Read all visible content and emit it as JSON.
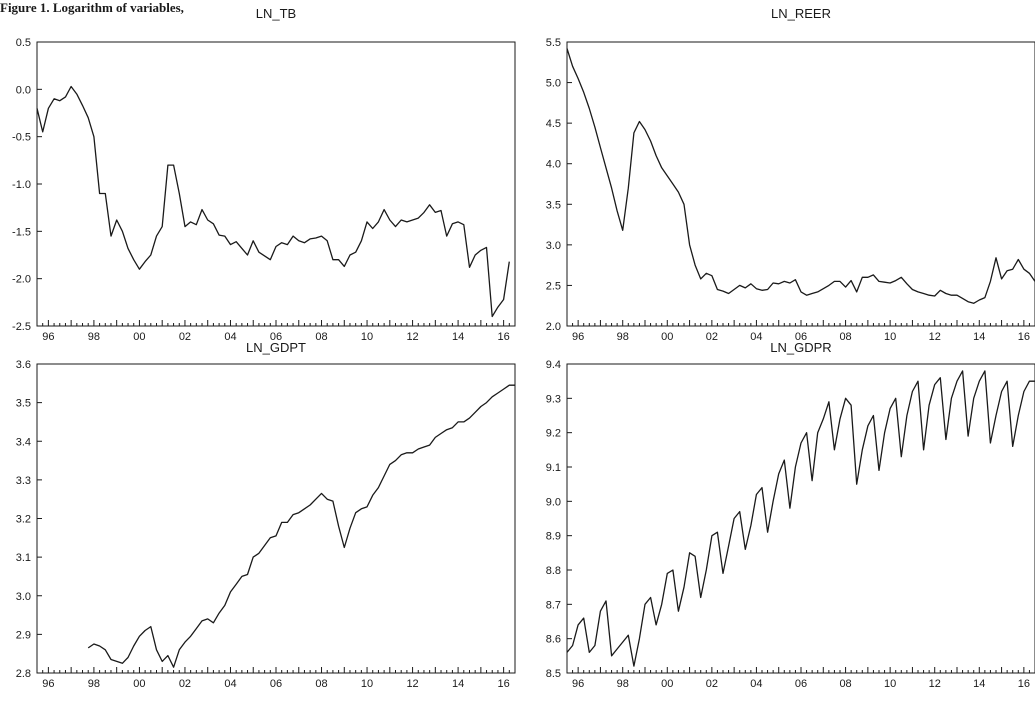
{
  "figure_caption": "Figure 1. Logarithm of variables,",
  "chart_data": [
    {
      "type": "line",
      "title": "LN_TB",
      "ylim": [
        -2.5,
        0.5
      ],
      "yticks": [
        0.5,
        0.0,
        -0.5,
        -1.0,
        -1.5,
        -2.0,
        -2.5
      ],
      "xlim": [
        1995.5,
        2016.5
      ],
      "xticks": [
        "96",
        "98",
        "00",
        "02",
        "04",
        "06",
        "08",
        "10",
        "12",
        "14",
        "16"
      ],
      "grid": false,
      "series": [
        {
          "x": [
            1995.5,
            1995.75,
            1996.0,
            1996.25,
            1996.5,
            1996.75,
            1997.0,
            1997.25,
            1997.5,
            1997.75,
            1998.0,
            1998.25,
            1998.5,
            1998.75,
            1999.0,
            1999.25,
            1999.5,
            1999.75,
            2000.0,
            2000.25,
            2000.5,
            2000.75,
            2001.0,
            2001.25,
            2001.5,
            2001.75,
            2002.0,
            2002.25,
            2002.5,
            2002.75,
            2003.0,
            2003.25,
            2003.5,
            2003.75,
            2004.0,
            2004.25,
            2004.5,
            2004.75,
            2005.0,
            2005.25,
            2005.5,
            2005.75,
            2006.0,
            2006.25,
            2006.5,
            2006.75,
            2007.0,
            2007.25,
            2007.5,
            2007.75,
            2008.0,
            2008.25,
            2008.5,
            2008.75,
            2009.0,
            2009.25,
            2009.5,
            2009.75,
            2010.0,
            2010.25,
            2010.5,
            2010.75,
            2011.0,
            2011.25,
            2011.5,
            2011.75,
            2012.0,
            2012.25,
            2012.5,
            2012.75,
            2013.0,
            2013.25,
            2013.5,
            2013.75,
            2014.0,
            2014.25,
            2014.5,
            2014.75,
            2015.0,
            2015.25,
            2015.5,
            2015.75,
            2016.0,
            2016.25
          ],
          "values": [
            -0.2,
            -0.45,
            -0.2,
            -0.1,
            -0.12,
            -0.08,
            0.03,
            -0.05,
            -0.17,
            -0.3,
            -0.5,
            -1.1,
            -1.1,
            -1.55,
            -1.38,
            -1.5,
            -1.68,
            -1.8,
            -1.9,
            -1.82,
            -1.75,
            -1.55,
            -1.45,
            -0.8,
            -0.8,
            -1.1,
            -1.45,
            -1.4,
            -1.43,
            -1.27,
            -1.38,
            -1.42,
            -1.54,
            -1.55,
            -1.64,
            -1.61,
            -1.68,
            -1.75,
            -1.6,
            -1.72,
            -1.76,
            -1.8,
            -1.66,
            -1.62,
            -1.64,
            -1.55,
            -1.6,
            -1.62,
            -1.58,
            -1.57,
            -1.55,
            -1.6,
            -1.8,
            -1.8,
            -1.87,
            -1.75,
            -1.72,
            -1.6,
            -1.4,
            -1.47,
            -1.4,
            -1.27,
            -1.38,
            -1.45,
            -1.38,
            -1.4,
            -1.38,
            -1.36,
            -1.3,
            -1.22,
            -1.3,
            -1.28,
            -1.55,
            -1.42,
            -1.4,
            -1.43,
            -1.88,
            -1.75,
            -1.7,
            -1.67,
            -2.4,
            -2.3,
            -2.22,
            -1.82
          ]
        }
      ]
    },
    {
      "type": "line",
      "title": "LN_REER",
      "ylim": [
        2.0,
        5.5
      ],
      "yticks": [
        5.5,
        5.0,
        4.5,
        4.0,
        3.5,
        3.0,
        2.5,
        2.0
      ],
      "xlim": [
        1995.5,
        2016.5
      ],
      "xticks": [
        "96",
        "98",
        "00",
        "02",
        "04",
        "06",
        "08",
        "10",
        "12",
        "14",
        "16"
      ],
      "grid": false,
      "series": [
        {
          "x": [
            1995.5,
            1995.75,
            1996.0,
            1996.25,
            1996.5,
            1996.75,
            1997.0,
            1997.25,
            1997.5,
            1997.75,
            1998.0,
            1998.25,
            1998.5,
            1998.75,
            1999.0,
            1999.25,
            1999.5,
            1999.75,
            2000.0,
            2000.25,
            2000.5,
            2000.75,
            2001.0,
            2001.25,
            2001.5,
            2001.75,
            2002.0,
            2002.25,
            2002.5,
            2002.75,
            2003.0,
            2003.25,
            2003.5,
            2003.75,
            2004.0,
            2004.25,
            2004.5,
            2004.75,
            2005.0,
            2005.25,
            2005.5,
            2005.75,
            2006.0,
            2006.25,
            2006.5,
            2006.75,
            2007.0,
            2007.25,
            2007.5,
            2007.75,
            2008.0,
            2008.25,
            2008.5,
            2008.75,
            2009.0,
            2009.25,
            2009.5,
            2009.75,
            2010.0,
            2010.25,
            2010.5,
            2010.75,
            2011.0,
            2011.25,
            2011.5,
            2011.75,
            2012.0,
            2012.25,
            2012.5,
            2012.75,
            2013.0,
            2013.25,
            2013.5,
            2013.75,
            2014.0,
            2014.25,
            2014.5,
            2014.75,
            2015.0,
            2015.25,
            2015.5,
            2015.75,
            2016.0,
            2016.25,
            2016.5
          ],
          "values": [
            5.42,
            5.2,
            5.05,
            4.88,
            4.68,
            4.45,
            4.2,
            3.95,
            3.7,
            3.42,
            3.18,
            3.7,
            4.38,
            4.52,
            4.42,
            4.28,
            4.1,
            3.95,
            3.85,
            3.75,
            3.65,
            3.5,
            3.0,
            2.75,
            2.58,
            2.65,
            2.62,
            2.45,
            2.43,
            2.4,
            2.45,
            2.5,
            2.47,
            2.52,
            2.46,
            2.44,
            2.45,
            2.53,
            2.52,
            2.55,
            2.53,
            2.57,
            2.42,
            2.38,
            2.4,
            2.42,
            2.46,
            2.5,
            2.55,
            2.55,
            2.48,
            2.56,
            2.42,
            2.6,
            2.6,
            2.63,
            2.55,
            2.54,
            2.53,
            2.56,
            2.6,
            2.52,
            2.45,
            2.42,
            2.4,
            2.38,
            2.37,
            2.44,
            2.4,
            2.38,
            2.38,
            2.34,
            2.3,
            2.28,
            2.32,
            2.35,
            2.55,
            2.84,
            2.58,
            2.68,
            2.7,
            2.82,
            2.7,
            2.65,
            2.55
          ]
        }
      ]
    },
    {
      "type": "line",
      "title": "LN_GDPT",
      "ylim": [
        2.8,
        3.6
      ],
      "yticks": [
        3.6,
        3.5,
        3.4,
        3.3,
        3.2,
        3.1,
        3.0,
        2.9,
        2.8
      ],
      "xlim": [
        1995.5,
        2016.5
      ],
      "xticks": [
        "96",
        "98",
        "00",
        "02",
        "04",
        "06",
        "08",
        "10",
        "12",
        "14",
        "16"
      ],
      "grid": false,
      "series": [
        {
          "x": [
            1997.75,
            1998.0,
            1998.25,
            1998.5,
            1998.75,
            1999.0,
            1999.25,
            1999.5,
            1999.75,
            2000.0,
            2000.25,
            2000.5,
            2000.75,
            2001.0,
            2001.25,
            2001.5,
            2001.75,
            2002.0,
            2002.25,
            2002.5,
            2002.75,
            2003.0,
            2003.25,
            2003.5,
            2003.75,
            2004.0,
            2004.25,
            2004.5,
            2004.75,
            2005.0,
            2005.25,
            2005.5,
            2005.75,
            2006.0,
            2006.25,
            2006.5,
            2006.75,
            2007.0,
            2007.25,
            2007.5,
            2007.75,
            2008.0,
            2008.25,
            2008.5,
            2008.75,
            2009.0,
            2009.25,
            2009.5,
            2009.75,
            2010.0,
            2010.25,
            2010.5,
            2010.75,
            2011.0,
            2011.25,
            2011.5,
            2011.75,
            2012.0,
            2012.25,
            2012.5,
            2012.75,
            2013.0,
            2013.25,
            2013.5,
            2013.75,
            2014.0,
            2014.25,
            2014.5,
            2014.75,
            2015.0,
            2015.25,
            2015.5,
            2015.75,
            2016.0,
            2016.25,
            2016.5
          ],
          "values": [
            2.865,
            2.875,
            2.87,
            2.86,
            2.835,
            2.83,
            2.825,
            2.84,
            2.87,
            2.895,
            2.91,
            2.92,
            2.86,
            2.83,
            2.845,
            2.815,
            2.86,
            2.88,
            2.895,
            2.915,
            2.935,
            2.94,
            2.93,
            2.955,
            2.975,
            3.01,
            3.03,
            3.05,
            3.055,
            3.1,
            3.11,
            3.13,
            3.15,
            3.155,
            3.19,
            3.19,
            3.21,
            3.215,
            3.225,
            3.235,
            3.25,
            3.265,
            3.25,
            3.245,
            3.18,
            3.125,
            3.175,
            3.215,
            3.225,
            3.23,
            3.26,
            3.28,
            3.31,
            3.34,
            3.35,
            3.365,
            3.37,
            3.37,
            3.38,
            3.385,
            3.39,
            3.41,
            3.42,
            3.43,
            3.435,
            3.45,
            3.45,
            3.46,
            3.475,
            3.49,
            3.5,
            3.515,
            3.525,
            3.535,
            3.545,
            3.545
          ]
        }
      ]
    },
    {
      "type": "line",
      "title": "LN_GDPR",
      "ylim": [
        8.5,
        9.4
      ],
      "yticks": [
        9.4,
        9.3,
        9.2,
        9.1,
        9.0,
        8.9,
        8.8,
        8.7,
        8.6,
        8.5
      ],
      "xlim": [
        1995.5,
        2016.5
      ],
      "xticks": [
        "96",
        "98",
        "00",
        "02",
        "04",
        "06",
        "08",
        "10",
        "12",
        "14",
        "16"
      ],
      "grid": false,
      "series": [
        {
          "x": [
            1995.5,
            1995.75,
            1996.0,
            1996.25,
            1996.5,
            1996.75,
            1997.0,
            1997.25,
            1997.5,
            1997.75,
            1998.0,
            1998.25,
            1998.5,
            1998.75,
            1999.0,
            1999.25,
            1999.5,
            1999.75,
            2000.0,
            2000.25,
            2000.5,
            2000.75,
            2001.0,
            2001.25,
            2001.5,
            2001.75,
            2002.0,
            2002.25,
            2002.5,
            2002.75,
            2003.0,
            2003.25,
            2003.5,
            2003.75,
            2004.0,
            2004.25,
            2004.5,
            2004.75,
            2005.0,
            2005.25,
            2005.5,
            2005.75,
            2006.0,
            2006.25,
            2006.5,
            2006.75,
            2007.0,
            2007.25,
            2007.5,
            2007.75,
            2008.0,
            2008.25,
            2008.5,
            2008.75,
            2009.0,
            2009.25,
            2009.5,
            2009.75,
            2010.0,
            2010.25,
            2010.5,
            2010.75,
            2011.0,
            2011.25,
            2011.5,
            2011.75,
            2012.0,
            2012.25,
            2012.5,
            2012.75,
            2013.0,
            2013.25,
            2013.5,
            2013.75,
            2014.0,
            2014.25,
            2014.5,
            2014.75,
            2015.0,
            2015.25,
            2015.5,
            2015.75,
            2016.0,
            2016.25,
            2016.5
          ],
          "values": [
            8.56,
            8.58,
            8.64,
            8.66,
            8.56,
            8.58,
            8.68,
            8.71,
            8.55,
            8.57,
            8.59,
            8.61,
            8.52,
            8.6,
            8.7,
            8.72,
            8.64,
            8.7,
            8.79,
            8.8,
            8.68,
            8.75,
            8.85,
            8.84,
            8.72,
            8.8,
            8.9,
            8.91,
            8.79,
            8.87,
            8.95,
            8.97,
            8.86,
            8.93,
            9.02,
            9.04,
            8.91,
            9.0,
            9.08,
            9.12,
            8.98,
            9.1,
            9.17,
            9.2,
            9.06,
            9.2,
            9.24,
            9.29,
            9.15,
            9.24,
            9.3,
            9.28,
            9.05,
            9.15,
            9.22,
            9.25,
            9.09,
            9.2,
            9.27,
            9.3,
            9.13,
            9.25,
            9.32,
            9.35,
            9.15,
            9.28,
            9.34,
            9.36,
            9.18,
            9.3,
            9.35,
            9.38,
            9.19,
            9.3,
            9.35,
            9.38,
            9.17,
            9.25,
            9.32,
            9.35,
            9.16,
            9.25,
            9.32,
            9.35,
            9.35
          ]
        }
      ]
    }
  ]
}
